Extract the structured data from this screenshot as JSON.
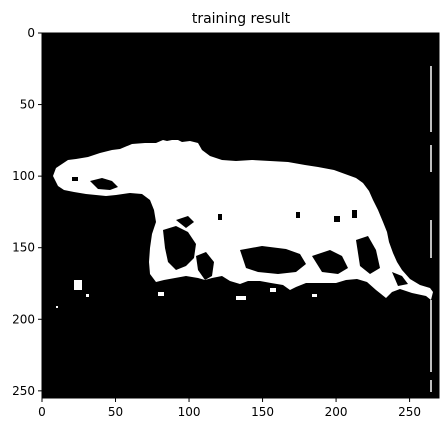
{
  "chart_data": {
    "type": "heatmap",
    "title": "training result",
    "xlabel": "",
    "ylabel": "",
    "xlim": [
      0,
      270
    ],
    "ylim": [
      255,
      0
    ],
    "x_ticks": [
      "0",
      "50",
      "100",
      "150",
      "200",
      "250"
    ],
    "y_ticks": [
      "0",
      "50",
      "100",
      "150",
      "200",
      "250"
    ],
    "x_tick_values": [
      0,
      50,
      100,
      150,
      200,
      250
    ],
    "y_tick_values": [
      0,
      50,
      100,
      150,
      200,
      250
    ],
    "colormap": "binary (black background, white foreground)",
    "grid": false,
    "colors": {
      "background": "#000000",
      "foreground": "#ffffff"
    }
  }
}
